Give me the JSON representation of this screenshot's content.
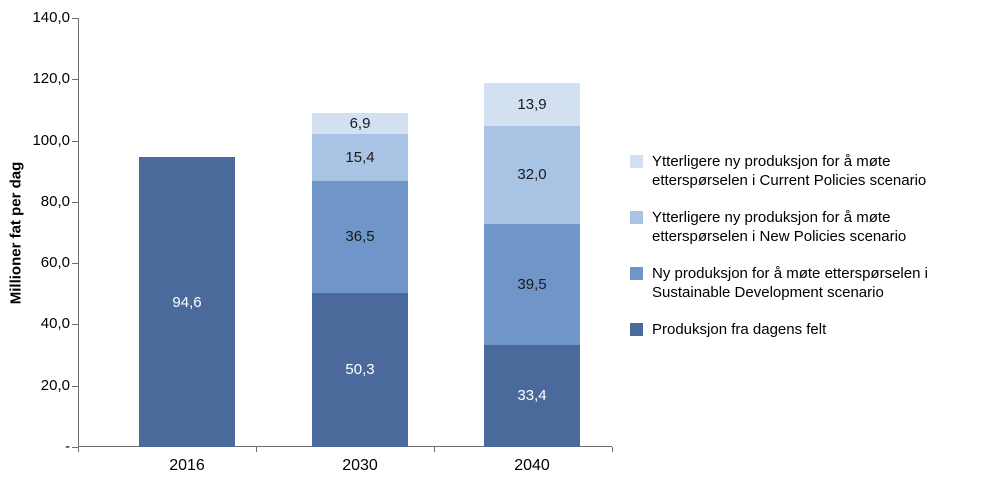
{
  "chart_data": {
    "type": "bar",
    "stacked": true,
    "title": "",
    "xlabel": "",
    "ylabel": "Millioner fat per dag",
    "ylim": [
      0,
      140
    ],
    "grid": false,
    "y_ticks": [
      "140,0",
      "120,0",
      "100,0",
      "80,0",
      "60,0",
      "40,0",
      "20,0",
      "-"
    ],
    "categories": [
      "2016",
      "2030",
      "2040"
    ],
    "series": [
      {
        "name": "Produksjon fra dagens felt",
        "color": "#4a6a9b",
        "label_color": "#ffffff",
        "values": [
          94.6,
          50.3,
          33.4
        ],
        "labels": [
          "94,6",
          "50,3",
          "33,4"
        ]
      },
      {
        "name": "Ny produksjon for å møte etterspørselen i Sustainable Development scenario",
        "color": "#7095c9",
        "label_color": "#1a1a1a",
        "values": [
          0,
          36.5,
          39.5
        ],
        "labels": [
          "",
          "36,5",
          "39,5"
        ]
      },
      {
        "name": "Ytterligere ny produksjon for å møte etterspørselen i New Policies scenario",
        "color": "#a9c3e4",
        "label_color": "#1a1a1a",
        "values": [
          0,
          15.4,
          32.0
        ],
        "labels": [
          "",
          "15,4",
          "32,0"
        ]
      },
      {
        "name": "Ytterligere ny produksjon for å møte etterspørselen i Current Policies scenario",
        "color": "#d3e0f1",
        "label_color": "#1a1a1a",
        "values": [
          0,
          6.9,
          13.9
        ],
        "labels": [
          "",
          "6,9",
          "13,9"
        ]
      }
    ],
    "legend": {
      "position": "right",
      "entries": [
        {
          "label": "Ytterligere ny produksjon for å møte etterspørselen i Current Policies scenario",
          "color": "#d3e0f1"
        },
        {
          "label": "Ytterligere ny produksjon for å møte etterspørselen i New Policies scenario",
          "color": "#a9c3e4"
        },
        {
          "label": "Ny produksjon for å møte etterspørselen i Sustainable Development scenario",
          "color": "#7095c9"
        },
        {
          "label": "Produksjon fra dagens felt",
          "color": "#4a6a9b"
        }
      ]
    }
  }
}
